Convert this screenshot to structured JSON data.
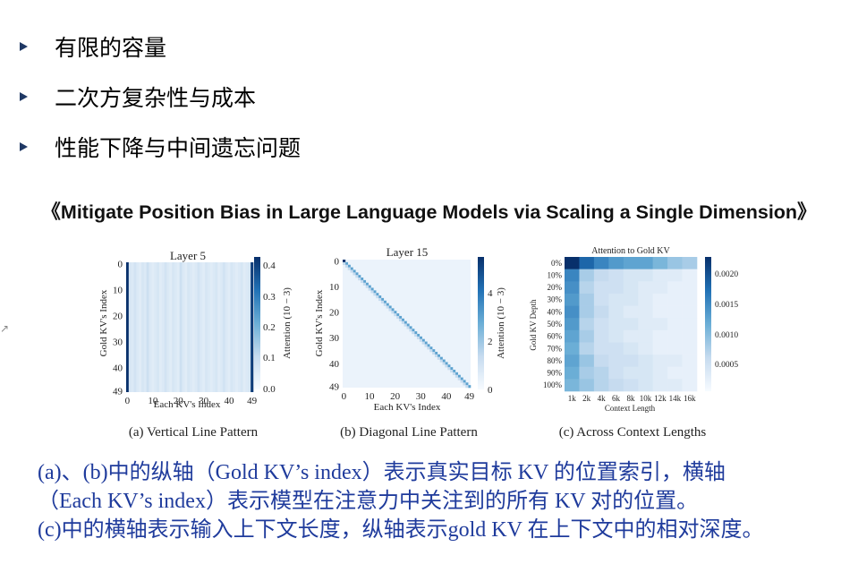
{
  "bullets": [
    "有限的容量",
    "二次方复杂性与成本",
    "性能下降与中间遗忘问题"
  ],
  "paper_title": "《Mitigate Position Bias in Large Language Models via Scaling a Single Dimension》",
  "colors": {
    "bullet": "#1f3864",
    "caption": "#1f3b9c",
    "heat_dark": "#08306b",
    "heat_light": "#f7fbff"
  },
  "chart_data": [
    {
      "type": "heatmap",
      "title": "Layer 5",
      "xlabel": "Each KV's Index",
      "ylabel": "Gold KV's Index",
      "x_ticks": [
        "0",
        "10",
        "20",
        "30",
        "40",
        "49"
      ],
      "y_ticks": [
        "0",
        "10",
        "20",
        "30",
        "40",
        "49"
      ],
      "colorbar_label": "Attention (10^{-3})",
      "colorbar_label_text": "Attention (10 − 3)",
      "colorbar_ticks": [
        "0.4",
        "0.3",
        "0.2",
        "0.1",
        "0.0"
      ],
      "colorbar_range": [
        0.0,
        0.42
      ],
      "pattern": "vertical columns: strong at KV index 0 and 49",
      "column_values": [
        0.42,
        0.07,
        0.06,
        0.08,
        0.06,
        0.05,
        0.07,
        0.06,
        0.09,
        0.06,
        0.05,
        0.06,
        0.07,
        0.05,
        0.06,
        0.08,
        0.06,
        0.05,
        0.07,
        0.06,
        0.05,
        0.09,
        0.06,
        0.05,
        0.07,
        0.06,
        0.05,
        0.06,
        0.08,
        0.06,
        0.05,
        0.07,
        0.06,
        0.05,
        0.06,
        0.07,
        0.05,
        0.06,
        0.08,
        0.06,
        0.05,
        0.07,
        0.06,
        0.05,
        0.06,
        0.07,
        0.05,
        0.06,
        0.07,
        0.4
      ],
      "caption": "(a) Vertical Line Pattern"
    },
    {
      "type": "heatmap",
      "title": "Layer 15",
      "xlabel": "Each KV's Index",
      "ylabel": "Gold KV's Index",
      "x_ticks": [
        "0",
        "10",
        "20",
        "30",
        "40",
        "49"
      ],
      "y_ticks": [
        "0",
        "10",
        "20",
        "30",
        "40",
        "49"
      ],
      "colorbar_label": "Attention (10^{-3})",
      "colorbar_label_text": "Attention (10 − 3)",
      "colorbar_ticks": [
        "4",
        "2",
        "0"
      ],
      "colorbar_range": [
        0,
        5
      ],
      "pattern": "diagonal: strong where KV index equals gold KV index",
      "caption": "(b) Diagonal Line Pattern"
    },
    {
      "type": "heatmap",
      "title": "Attention to Gold KV",
      "xlabel": "Context Length",
      "ylabel": "Gold KV Depth",
      "x_ticks": [
        "1k",
        "2k",
        "4k",
        "6k",
        "8k",
        "10k",
        "12k",
        "14k",
        "16k"
      ],
      "y_ticks": [
        "0%",
        "10%",
        "20%",
        "30%",
        "40%",
        "50%",
        "60%",
        "70%",
        "80%",
        "90%",
        "100%"
      ],
      "colorbar_ticks": [
        "0.0020",
        "0.0015",
        "0.0010",
        "0.0005"
      ],
      "colorbar_range": [
        0.0,
        0.0024
      ],
      "values": [
        [
          0.0024,
          0.0019,
          0.0016,
          0.0014,
          0.0013,
          0.0013,
          0.0011,
          0.0009,
          0.0008
        ],
        [
          0.0016,
          0.0008,
          0.0006,
          0.0005,
          0.0004,
          0.0004,
          0.0003,
          0.0003,
          0.0002
        ],
        [
          0.0015,
          0.0007,
          0.0005,
          0.0005,
          0.0004,
          0.0003,
          0.0003,
          0.0002,
          0.0002
        ],
        [
          0.0014,
          0.0008,
          0.0005,
          0.0004,
          0.0004,
          0.0003,
          0.0002,
          0.0002,
          0.0002
        ],
        [
          0.0015,
          0.0008,
          0.0006,
          0.0004,
          0.0003,
          0.0003,
          0.0002,
          0.0002,
          0.0002
        ],
        [
          0.0014,
          0.0007,
          0.0005,
          0.0004,
          0.0004,
          0.0003,
          0.0003,
          0.0002,
          0.0002
        ],
        [
          0.0013,
          0.0008,
          0.0005,
          0.0004,
          0.0003,
          0.0003,
          0.0002,
          0.0002,
          0.0002
        ],
        [
          0.0012,
          0.0007,
          0.0005,
          0.0005,
          0.0004,
          0.0003,
          0.0002,
          0.0002,
          0.0002
        ],
        [
          0.0013,
          0.0009,
          0.0006,
          0.0005,
          0.0005,
          0.0004,
          0.0003,
          0.0003,
          0.0002
        ],
        [
          0.0012,
          0.0008,
          0.0007,
          0.0005,
          0.0004,
          0.0004,
          0.0003,
          0.0002,
          0.0002
        ],
        [
          0.0011,
          0.0009,
          0.0007,
          0.0006,
          0.0005,
          0.0004,
          0.0003,
          0.0003,
          0.0002
        ]
      ],
      "caption": "(c) Across Context Lengths"
    }
  ],
  "caption_lines": [
    "(a)、(b)中的纵轴（Gold KV’s index）表示真实目标 KV 的位置索引，横轴",
    "（Each KV’s index）表示模型在注意力中关注到的所有 KV 对的位置。",
    "(c)中的横轴表示输入上下文长度，纵轴表示gold KV 在上下文中的相对深度。"
  ]
}
